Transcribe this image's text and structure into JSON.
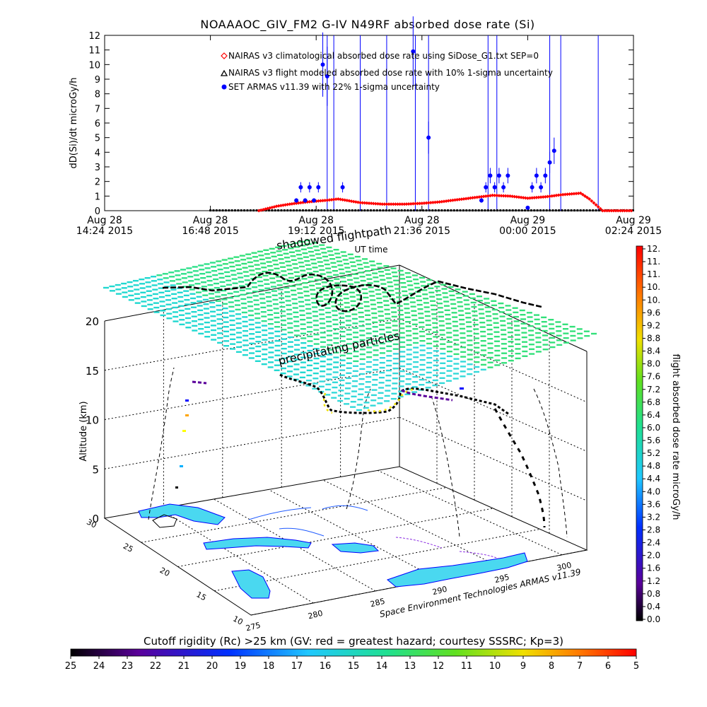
{
  "title": "NOAAAOC_GIV_FM2 G-IV    N49RF  absorbed dose rate (Si)",
  "chart_data": [
    {
      "type": "line",
      "ylabel": "dD(Si)/dt microGy/h",
      "xlabel": "UT time",
      "ylim": [
        0,
        12
      ],
      "yticks": [
        "0",
        "1",
        "2",
        "3",
        "4",
        "5",
        "6",
        "7",
        "8",
        "9",
        "10",
        "11",
        "12"
      ],
      "xticks": [
        {
          "h": 0,
          "l1": "Aug 28",
          "l2": "14:24 2015"
        },
        {
          "h": 2.4,
          "l1": "Aug 28",
          "l2": "16:48 2015"
        },
        {
          "h": 4.8,
          "l1": "Aug 28",
          "l2": "19:12 2015"
        },
        {
          "h": 7.2,
          "l1": "Aug 28",
          "l2": "21:36 2015"
        },
        {
          "h": 9.6,
          "l1": "Aug 29",
          "l2": "00:00 2015"
        },
        {
          "h": 12.0,
          "l1": "Aug 29",
          "l2": "02:24 2015"
        }
      ],
      "xlim_hours": [
        0,
        12
      ],
      "legend": [
        {
          "label": "NAIRAS v3 climatological absorbed dose rate using SiDose_G1.txt SEP=0",
          "color": "#ff0000",
          "marker": "diamond"
        },
        {
          "label": "NAIRAS v3 flight modeled absorbed dose rate with 10% 1-sigma uncertainty",
          "color": "#000000",
          "marker": "triangle"
        },
        {
          "label": "SET ARMAS v11.39 with 22% 1-sigma uncertainty",
          "color": "#0000ff",
          "marker": "circle"
        }
      ],
      "series": [
        {
          "name": "NAIRAS v3 climatological absorbed dose rate using SiDose_G1.txt SEP=0",
          "color": "#ff0000",
          "x": [
            3.5,
            3.9,
            4.2,
            4.6,
            5.0,
            5.3,
            5.8,
            6.3,
            6.8,
            7.2,
            7.6,
            8.0,
            8.4,
            8.8,
            9.2,
            9.6,
            10.0,
            10.4,
            10.8,
            11.0,
            11.3,
            11.6,
            12.0
          ],
          "y": [
            0.0,
            0.3,
            0.45,
            0.6,
            0.7,
            0.8,
            0.55,
            0.45,
            0.45,
            0.5,
            0.6,
            0.75,
            0.9,
            1.05,
            1.0,
            0.85,
            0.95,
            1.1,
            1.2,
            0.8,
            0.0,
            0.0,
            0.0
          ]
        },
        {
          "name": "NAIRAS v3 flight modeled absorbed dose rate with 10% 1-sigma uncertainty",
          "color": "#000000",
          "x": [
            2.4,
            4.0,
            6.0,
            8.0,
            10.0,
            12.0
          ],
          "y": [
            0.02,
            0.02,
            0.02,
            0.02,
            0.02,
            0.02
          ]
        },
        {
          "name": "SET ARMAS v11.39 with 22% 1-sigma uncertainty",
          "color": "#0000ff",
          "x": [
            4.35,
            4.45,
            4.55,
            4.65,
            4.75,
            4.85,
            4.95,
            5.05,
            5.4,
            7.0,
            7.35,
            8.55,
            8.65,
            8.75,
            8.85,
            8.95,
            9.05,
            9.15,
            9.6,
            9.7,
            9.8,
            9.9,
            10.0,
            10.1,
            10.2
          ],
          "y": [
            0.7,
            1.6,
            0.7,
            1.6,
            0.7,
            1.6,
            10.0,
            9.2,
            1.6,
            10.9,
            5.0,
            0.7,
            1.6,
            2.4,
            1.6,
            2.4,
            1.6,
            2.4,
            0.2,
            1.6,
            2.4,
            1.6,
            2.4,
            3.3,
            4.1
          ]
        }
      ],
      "spikes_hours": [
        5.05,
        5.2,
        5.8,
        6.4,
        7.05,
        7.35,
        8.7,
        8.9,
        10.1,
        10.35,
        11.2
      ]
    },
    {
      "type": "scatter3d",
      "zlabel": "Altitude (km)",
      "zticks": [
        "0",
        "5",
        "10",
        "15",
        "20"
      ],
      "lat_ticks": [
        "10",
        "15",
        "20",
        "25",
        "30"
      ],
      "lon_ticks": [
        "275",
        "280",
        "285",
        "290",
        "295",
        "300"
      ],
      "annotations": [
        "shadowed flightpath",
        "precipitating particles"
      ],
      "credit": "Space Environment Technologies ARMAS v11.39"
    }
  ],
  "dose_colorbar": {
    "label": "flight absorbed dose rate microGy/h",
    "ticks": [
      "12.",
      "11.",
      "11.",
      "10.",
      "10.",
      "9.6",
      "9.2",
      "8.8",
      "8.4",
      "8.0",
      "7.6",
      "7.2",
      "6.8",
      "6.4",
      "6.0",
      "5.6",
      "5.2",
      "4.8",
      "4.4",
      "4.0",
      "3.6",
      "3.2",
      "2.8",
      "2.4",
      "2.0",
      "1.6",
      "1.2",
      "0.8",
      "0.4",
      "0.0"
    ]
  },
  "rigidity_colorbar": {
    "title": "Cutoff rigidity (Rc) >25 km (GV: red = greatest hazard; courtesy SSSRC; Kp=3)",
    "ticks": [
      "25",
      "24",
      "23",
      "22",
      "21",
      "20",
      "19",
      "18",
      "17",
      "16",
      "15",
      "14",
      "13",
      "12",
      "11",
      "10",
      "9",
      "8",
      "7",
      "6",
      "5"
    ]
  },
  "colors": {
    "axes": "#000000",
    "guide": "#808080",
    "plane": "#33e07a",
    "plane_light": "#33d9d9",
    "land": "#4ad8f0",
    "sea_coast": "#0000ff",
    "flight": "#000000"
  }
}
